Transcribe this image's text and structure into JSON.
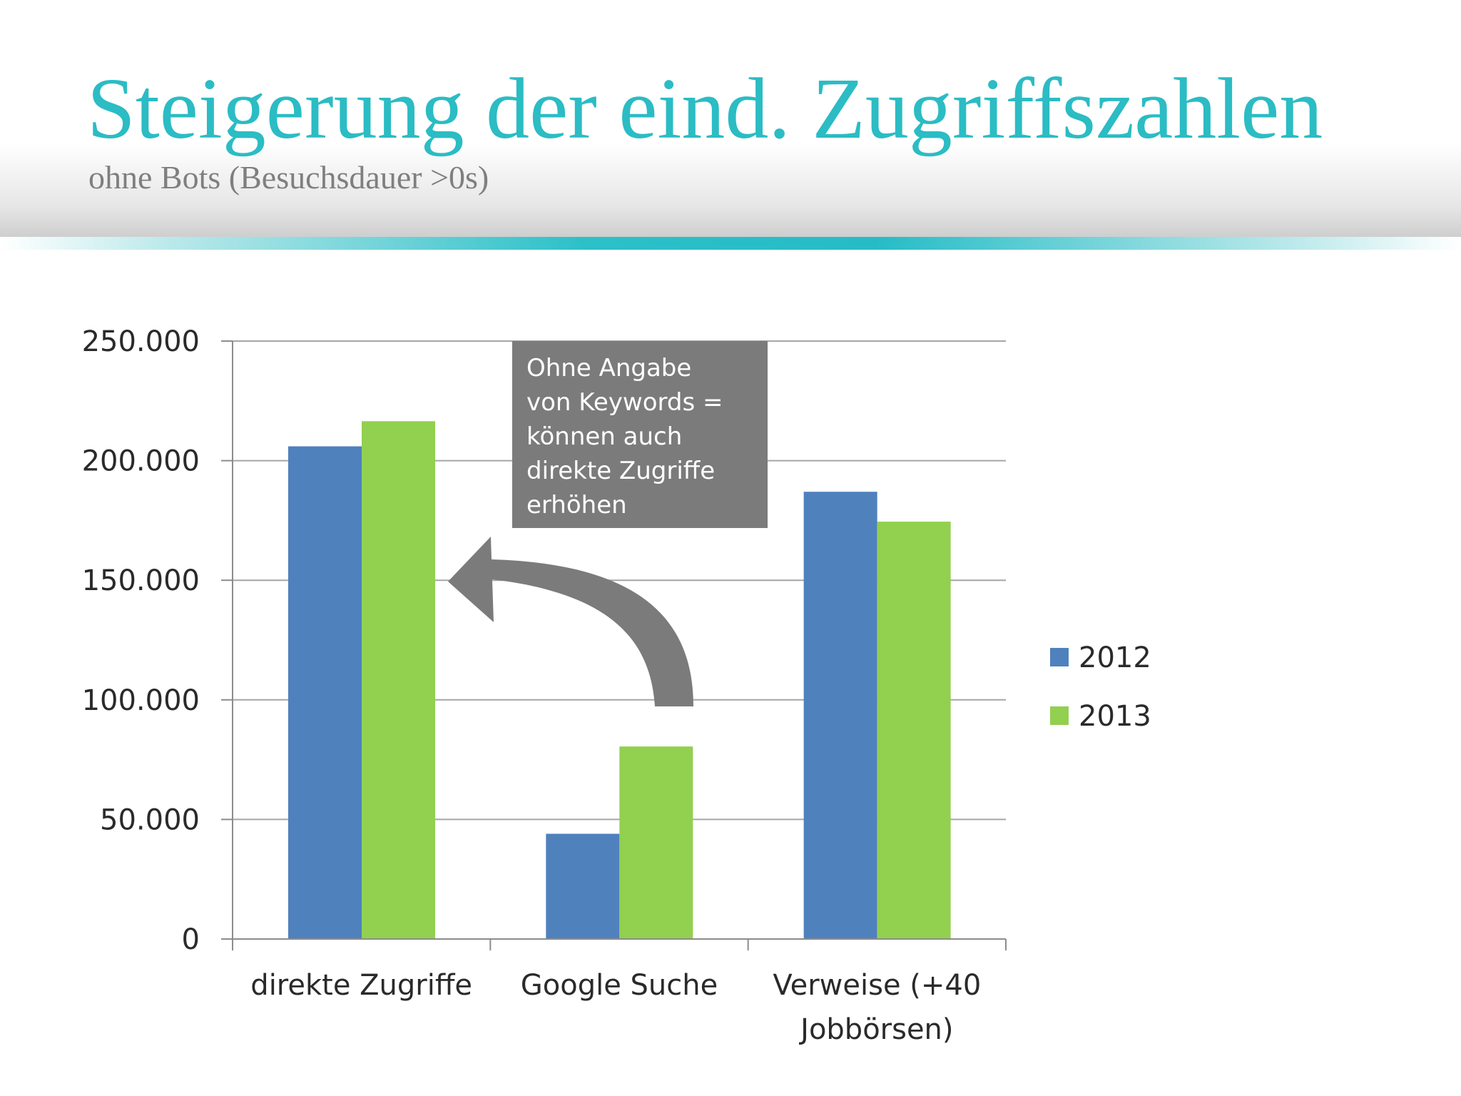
{
  "slide": {
    "title": "Steigerung der eind. Zugriffszahlen",
    "subtitle": "ohne Bots (Besuchsdauer >0s)",
    "accent_color": "#2bbcc4"
  },
  "callout": {
    "text": "Ohne Angabe\nvon Keywords =\nkönnen auch\ndirekte Zugriffe\nerhöhen",
    "arrow_icon": "curved-arrow-left-icon",
    "color": "#7b7b7b"
  },
  "chart_data": {
    "type": "bar",
    "categories": [
      "direkte Zugriffe",
      "Google Suche",
      "Verweise (+40 Jobbörsen)"
    ],
    "category_lines": [
      [
        "direkte Zugriffe"
      ],
      [
        "Google Suche"
      ],
      [
        "Verweise (+40",
        "Jobbörsen)"
      ]
    ],
    "series": [
      {
        "name": "2012",
        "values": [
          206000,
          44000,
          187000
        ],
        "color": "#4f81bd"
      },
      {
        "name": "2013",
        "values": [
          216500,
          80500,
          174500
        ],
        "color": "#92d050"
      }
    ],
    "ylim": [
      0,
      250000
    ],
    "yticks": [
      0,
      50000,
      100000,
      150000,
      200000,
      250000
    ],
    "ytick_labels": [
      "0",
      "50.000",
      "100.000",
      "150.000",
      "200.000",
      "250.000"
    ],
    "grid": true,
    "legend": "right",
    "title": "",
    "xlabel": "",
    "ylabel": ""
  }
}
